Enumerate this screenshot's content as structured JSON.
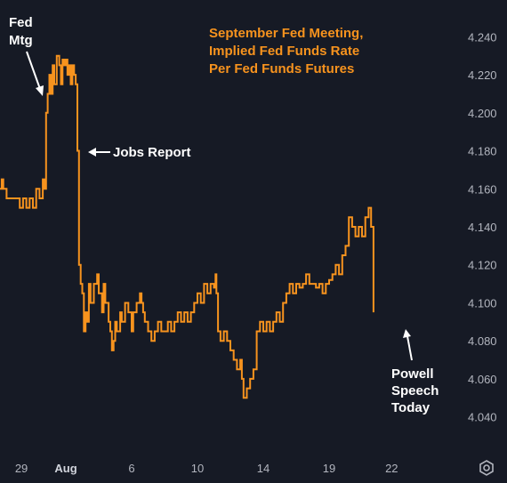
{
  "chart_data": {
    "type": "line",
    "title_lines": [
      "September Fed Meeting,",
      "Implied Fed Funds Rate",
      "Per Fed Funds Futures"
    ],
    "y_ticks": [
      "4.240",
      "4.220",
      "4.200",
      "4.180",
      "4.160",
      "4.140",
      "4.120",
      "4.100",
      "4.080",
      "4.060",
      "4.040"
    ],
    "x_ticks": [
      {
        "label": "29",
        "t": 1.3,
        "bold": false
      },
      {
        "label": "Aug",
        "t": 4.0,
        "bold": true
      },
      {
        "label": "6",
        "t": 8.0,
        "bold": false
      },
      {
        "label": "10",
        "t": 12.0,
        "bold": false
      },
      {
        "label": "14",
        "t": 16.0,
        "bold": false
      },
      {
        "label": "19",
        "t": 20.0,
        "bold": false
      },
      {
        "label": "22",
        "t": 23.8,
        "bold": false
      }
    ],
    "ylim": [
      4.03,
      4.25
    ],
    "xlim": [
      0,
      28
    ],
    "grid": false,
    "line_color": "#f7931e",
    "series": [
      {
        "values": [
          [
            0.0,
            4.16
          ],
          [
            0.1,
            4.165
          ],
          [
            0.2,
            4.16
          ],
          [
            0.4,
            4.155
          ],
          [
            0.7,
            4.155
          ],
          [
            1.0,
            4.155
          ],
          [
            1.2,
            4.15
          ],
          [
            1.4,
            4.155
          ],
          [
            1.6,
            4.15
          ],
          [
            1.8,
            4.155
          ],
          [
            2.0,
            4.15
          ],
          [
            2.2,
            4.16
          ],
          [
            2.4,
            4.155
          ],
          [
            2.6,
            4.165
          ],
          [
            2.7,
            4.16
          ],
          [
            2.8,
            4.2
          ],
          [
            2.9,
            4.21
          ],
          [
            3.0,
            4.22
          ],
          [
            3.1,
            4.21
          ],
          [
            3.2,
            4.225
          ],
          [
            3.3,
            4.215
          ],
          [
            3.45,
            4.23
          ],
          [
            3.6,
            4.225
          ],
          [
            3.7,
            4.215
          ],
          [
            3.8,
            4.228
          ],
          [
            3.9,
            4.225
          ],
          [
            4.0,
            4.228
          ],
          [
            4.1,
            4.22
          ],
          [
            4.2,
            4.225
          ],
          [
            4.3,
            4.215
          ],
          [
            4.4,
            4.225
          ],
          [
            4.5,
            4.22
          ],
          [
            4.6,
            4.215
          ],
          [
            4.7,
            4.18
          ],
          [
            4.8,
            4.12
          ],
          [
            4.9,
            4.11
          ],
          [
            5.0,
            4.105
          ],
          [
            5.1,
            4.085
          ],
          [
            5.2,
            4.095
          ],
          [
            5.3,
            4.09
          ],
          [
            5.4,
            4.11
          ],
          [
            5.5,
            4.1
          ],
          [
            5.7,
            4.11
          ],
          [
            5.9,
            4.115
          ],
          [
            6.0,
            4.105
          ],
          [
            6.2,
            4.095
          ],
          [
            6.3,
            4.11
          ],
          [
            6.4,
            4.1
          ],
          [
            6.6,
            4.09
          ],
          [
            6.7,
            4.085
          ],
          [
            6.8,
            4.075
          ],
          [
            6.9,
            4.08
          ],
          [
            7.0,
            4.09
          ],
          [
            7.1,
            4.085
          ],
          [
            7.3,
            4.095
          ],
          [
            7.4,
            4.09
          ],
          [
            7.6,
            4.1
          ],
          [
            7.8,
            4.095
          ],
          [
            8.0,
            4.085
          ],
          [
            8.1,
            4.095
          ],
          [
            8.3,
            4.1
          ],
          [
            8.5,
            4.105
          ],
          [
            8.6,
            4.1
          ],
          [
            8.7,
            4.095
          ],
          [
            8.8,
            4.09
          ],
          [
            9.0,
            4.085
          ],
          [
            9.2,
            4.08
          ],
          [
            9.4,
            4.085
          ],
          [
            9.6,
            4.09
          ],
          [
            9.8,
            4.085
          ],
          [
            10.0,
            4.085
          ],
          [
            10.2,
            4.09
          ],
          [
            10.4,
            4.085
          ],
          [
            10.6,
            4.09
          ],
          [
            10.8,
            4.095
          ],
          [
            11.0,
            4.09
          ],
          [
            11.2,
            4.095
          ],
          [
            11.4,
            4.09
          ],
          [
            11.6,
            4.095
          ],
          [
            11.8,
            4.1
          ],
          [
            12.0,
            4.105
          ],
          [
            12.2,
            4.1
          ],
          [
            12.4,
            4.11
          ],
          [
            12.6,
            4.105
          ],
          [
            12.8,
            4.11
          ],
          [
            13.0,
            4.108
          ],
          [
            13.1,
            4.115
          ],
          [
            13.15,
            4.105
          ],
          [
            13.25,
            4.085
          ],
          [
            13.4,
            4.08
          ],
          [
            13.6,
            4.085
          ],
          [
            13.8,
            4.08
          ],
          [
            14.0,
            4.075
          ],
          [
            14.2,
            4.07
          ],
          [
            14.4,
            4.065
          ],
          [
            14.6,
            4.07
          ],
          [
            14.7,
            4.06
          ],
          [
            14.8,
            4.05
          ],
          [
            15.0,
            4.055
          ],
          [
            15.2,
            4.06
          ],
          [
            15.4,
            4.065
          ],
          [
            15.6,
            4.085
          ],
          [
            15.8,
            4.09
          ],
          [
            16.0,
            4.085
          ],
          [
            16.2,
            4.09
          ],
          [
            16.4,
            4.085
          ],
          [
            16.6,
            4.09
          ],
          [
            16.8,
            4.095
          ],
          [
            17.0,
            4.09
          ],
          [
            17.2,
            4.1
          ],
          [
            17.4,
            4.105
          ],
          [
            17.6,
            4.11
          ],
          [
            17.8,
            4.105
          ],
          [
            18.0,
            4.11
          ],
          [
            18.2,
            4.108
          ],
          [
            18.4,
            4.11
          ],
          [
            18.6,
            4.115
          ],
          [
            18.8,
            4.11
          ],
          [
            19.0,
            4.11
          ],
          [
            19.2,
            4.108
          ],
          [
            19.4,
            4.11
          ],
          [
            19.6,
            4.105
          ],
          [
            19.8,
            4.11
          ],
          [
            20.0,
            4.112
          ],
          [
            20.2,
            4.115
          ],
          [
            20.4,
            4.12
          ],
          [
            20.6,
            4.115
          ],
          [
            20.8,
            4.125
          ],
          [
            21.0,
            4.13
          ],
          [
            21.2,
            4.145
          ],
          [
            21.4,
            4.14
          ],
          [
            21.6,
            4.135
          ],
          [
            21.8,
            4.14
          ],
          [
            22.0,
            4.135
          ],
          [
            22.2,
            4.145
          ],
          [
            22.4,
            4.15
          ],
          [
            22.55,
            4.14
          ],
          [
            22.7,
            4.095
          ]
        ]
      }
    ],
    "annotations": {
      "fed_mtg": [
        "Fed",
        "Mtg"
      ],
      "jobs_report": "Jobs Report",
      "powell": [
        "Powell",
        "Speech",
        "Today"
      ]
    }
  },
  "icons": {
    "settings": "settings-gear-icon"
  }
}
